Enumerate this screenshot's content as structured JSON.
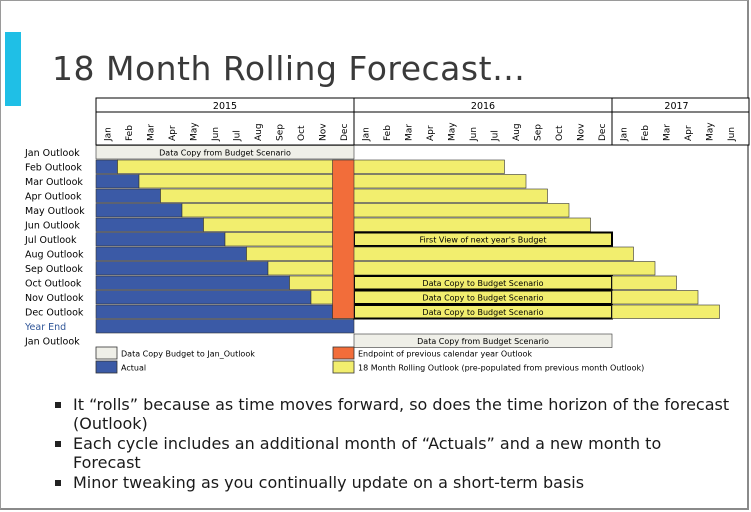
{
  "title": "18 Month Rolling Forecast…",
  "colors": {
    "actual": "#3b5aa6",
    "forecast": "#f2ee6e",
    "endpoint": "#f26d3a",
    "datacopy": "#efefe8"
  },
  "chart_data": {
    "type": "gantt",
    "years": [
      {
        "label": "2015",
        "start": 0,
        "span": 12
      },
      {
        "label": "2016",
        "start": 12,
        "span": 12
      },
      {
        "label": "2017",
        "start": 24,
        "span": 6
      }
    ],
    "months": [
      "Jan",
      "Feb",
      "Mar",
      "Apr",
      "May",
      "Jun",
      "Jul",
      "Aug",
      "Sep",
      "Oct",
      "Nov",
      "Dec",
      "Jan",
      "Feb",
      "Mar",
      "Apr",
      "May",
      "Jun",
      "Jul",
      "Aug",
      "Sep",
      "Oct",
      "Nov",
      "Dec",
      "Jan",
      "Feb",
      "Mar",
      "Apr",
      "May",
      "Jun"
    ],
    "rows": [
      {
        "label": "Jan Outlook",
        "highlight": false,
        "segments": [
          {
            "type": "datacopy",
            "start": 0,
            "end": 12,
            "text": "Data Copy from Budget Scenario"
          }
        ]
      },
      {
        "label": "Feb Outlook",
        "highlight": false,
        "segments": [
          {
            "type": "actual",
            "start": 0,
            "end": 1
          },
          {
            "type": "forecast",
            "start": 1,
            "end": 19
          }
        ]
      },
      {
        "label": "Mar Outlook",
        "highlight": false,
        "segments": [
          {
            "type": "actual",
            "start": 0,
            "end": 2
          },
          {
            "type": "forecast",
            "start": 2,
            "end": 20
          }
        ]
      },
      {
        "label": "Apr Outlook",
        "highlight": false,
        "segments": [
          {
            "type": "actual",
            "start": 0,
            "end": 3
          },
          {
            "type": "forecast",
            "start": 3,
            "end": 21
          }
        ]
      },
      {
        "label": "May Outlook",
        "highlight": false,
        "segments": [
          {
            "type": "actual",
            "start": 0,
            "end": 4
          },
          {
            "type": "forecast",
            "start": 4,
            "end": 22
          }
        ]
      },
      {
        "label": "Jun Outlook",
        "highlight": false,
        "segments": [
          {
            "type": "actual",
            "start": 0,
            "end": 5
          },
          {
            "type": "forecast",
            "start": 5,
            "end": 23
          }
        ]
      },
      {
        "label": "Jul Outlook",
        "highlight": false,
        "segments": [
          {
            "type": "actual",
            "start": 0,
            "end": 6
          },
          {
            "type": "forecast",
            "start": 6,
            "end": 12
          },
          {
            "type": "forecast-box",
            "start": 12,
            "end": 24,
            "text": "First View of next year's Budget"
          }
        ]
      },
      {
        "label": "Aug Outlook",
        "highlight": false,
        "segments": [
          {
            "type": "actual",
            "start": 0,
            "end": 7
          },
          {
            "type": "forecast",
            "start": 7,
            "end": 25
          }
        ]
      },
      {
        "label": "Sep Outlook",
        "highlight": false,
        "segments": [
          {
            "type": "actual",
            "start": 0,
            "end": 8
          },
          {
            "type": "forecast",
            "start": 8,
            "end": 26
          }
        ]
      },
      {
        "label": "Oct Outlook",
        "highlight": false,
        "segments": [
          {
            "type": "actual",
            "start": 0,
            "end": 9
          },
          {
            "type": "forecast",
            "start": 9,
            "end": 12
          },
          {
            "type": "forecast-box",
            "start": 12,
            "end": 24,
            "text": "Data Copy to Budget Scenario"
          },
          {
            "type": "forecast",
            "start": 24,
            "end": 27
          }
        ]
      },
      {
        "label": "Nov Outlook",
        "highlight": false,
        "segments": [
          {
            "type": "actual",
            "start": 0,
            "end": 10
          },
          {
            "type": "forecast",
            "start": 10,
            "end": 12
          },
          {
            "type": "forecast-box",
            "start": 12,
            "end": 24,
            "text": "Data Copy to Budget Scenario"
          },
          {
            "type": "forecast",
            "start": 24,
            "end": 28
          }
        ]
      },
      {
        "label": "Dec Outlook",
        "highlight": false,
        "segments": [
          {
            "type": "actual",
            "start": 0,
            "end": 11
          },
          {
            "type": "forecast",
            "start": 11,
            "end": 12
          },
          {
            "type": "forecast-box",
            "start": 12,
            "end": 24,
            "text": "Data Copy to Budget Scenario"
          },
          {
            "type": "forecast",
            "start": 24,
            "end": 29
          }
        ]
      },
      {
        "label": "Year End",
        "highlight": true,
        "segments": [
          {
            "type": "actual",
            "start": 0,
            "end": 12
          }
        ]
      },
      {
        "label": "Jan Outlook",
        "highlight": false,
        "segments": [
          {
            "type": "datacopy",
            "start": 12,
            "end": 24,
            "text": "Data Copy from Budget Scenario"
          }
        ]
      }
    ],
    "endpoint": {
      "month": 11,
      "from_row": 1,
      "to_row": 11
    },
    "legend": [
      {
        "type": "datacopy",
        "text": "Data Copy Budget to Jan_Outlook"
      },
      {
        "type": "actual",
        "text": "Actual"
      },
      {
        "type": "endpoint",
        "text": "Endpoint of previous calendar year Outlook"
      },
      {
        "type": "forecast",
        "text": "18 Month Rolling Outlook (pre-populated from previous month Outlook)"
      }
    ]
  },
  "bullets": [
    "It “rolls” because as time moves forward, so does the time horizon of the forecast (Outlook)",
    "Each cycle includes an additional month of “Actuals” and a new month to Forecast",
    "Minor tweaking as you continually update on a short-term basis"
  ]
}
